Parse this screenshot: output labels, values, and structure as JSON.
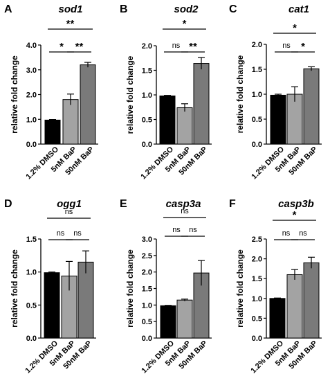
{
  "chart_data": [
    {
      "type": "bar",
      "panel_letter": "A",
      "title": "sod1",
      "ylabel": "relative fold change",
      "categories": [
        "1.2% DMSO",
        "5nM BaP",
        "50nM BaP"
      ],
      "values": [
        0.97,
        1.8,
        3.2
      ],
      "errors": [
        0.02,
        0.22,
        0.1
      ],
      "bar_colors": [
        "#000000",
        "#a3a3a3",
        "#7a7a7a"
      ],
      "ylim": [
        0,
        4.0
      ],
      "yticks": [
        "0.0",
        "1.0",
        "2.0",
        "3.0",
        "4.0"
      ],
      "significance": [
        {
          "from": 1,
          "to": 2,
          "label": "*"
        },
        {
          "from": 2,
          "to": 3,
          "label": "**"
        },
        {
          "from": 1,
          "to": 3,
          "label": "**"
        }
      ]
    },
    {
      "type": "bar",
      "panel_letter": "B",
      "title": "sod2",
      "ylabel": "relative fold change",
      "categories": [
        "1.2% DMSO",
        "5nM BaP",
        "50nM BaP"
      ],
      "values": [
        0.98,
        0.74,
        1.64
      ],
      "errors": [
        0.01,
        0.08,
        0.12
      ],
      "bar_colors": [
        "#000000",
        "#a3a3a3",
        "#7a7a7a"
      ],
      "ylim": [
        0,
        2.0
      ],
      "yticks": [
        "0.0",
        "0.5",
        "1.0",
        "1.5",
        "2.0"
      ],
      "significance": [
        {
          "from": 1,
          "to": 2,
          "label": "ns"
        },
        {
          "from": 2,
          "to": 3,
          "label": "**"
        },
        {
          "from": 1,
          "to": 3,
          "label": "*"
        }
      ]
    },
    {
      "type": "bar",
      "panel_letter": "C",
      "title": "cat1",
      "ylabel": "relative fold change",
      "categories": [
        "1.2% DMSO",
        "5nM BaP",
        "50nM BaP"
      ],
      "values": [
        0.98,
        1.0,
        1.51
      ],
      "errors": [
        0.02,
        0.15,
        0.04
      ],
      "bar_colors": [
        "#000000",
        "#a3a3a3",
        "#7a7a7a"
      ],
      "ylim": [
        0,
        2.0
      ],
      "yticks": [
        "0.0",
        "0.5",
        "1.0",
        "1.5",
        "2.0"
      ],
      "significance": [
        {
          "from": 1,
          "to": 2,
          "label": "ns"
        },
        {
          "from": 2,
          "to": 3,
          "label": "*"
        },
        {
          "from": 1,
          "to": 3,
          "label": "*"
        }
      ]
    },
    {
      "type": "bar",
      "panel_letter": "D",
      "title": "ogg1",
      "ylabel": "relative fold change",
      "categories": [
        "1.2% DMSO",
        "5nM BaP",
        "50nM BaP"
      ],
      "values": [
        0.99,
        0.94,
        1.15
      ],
      "errors": [
        0.01,
        0.22,
        0.17
      ],
      "bar_colors": [
        "#000000",
        "#a3a3a3",
        "#7a7a7a"
      ],
      "ylim": [
        0,
        1.5
      ],
      "yticks": [
        "0.0",
        "0.5",
        "1.0",
        "1.5"
      ],
      "significance": [
        {
          "from": 1,
          "to": 2,
          "label": "ns"
        },
        {
          "from": 2,
          "to": 3,
          "label": "ns"
        },
        {
          "from": 1,
          "to": 3,
          "label": "ns"
        }
      ]
    },
    {
      "type": "bar",
      "panel_letter": "E",
      "title": "casp3a",
      "ylabel": "relative fold change",
      "categories": [
        "1.2% DMSO",
        "5nM BaP",
        "50nM BaP"
      ],
      "values": [
        0.98,
        1.15,
        1.97
      ],
      "errors": [
        0.01,
        0.03,
        0.38
      ],
      "bar_colors": [
        "#000000",
        "#a3a3a3",
        "#7a7a7a"
      ],
      "ylim": [
        0,
        3.0
      ],
      "yticks": [
        "0.0",
        "0.5",
        "1.0",
        "1.5",
        "2.0",
        "2.5",
        "3.0"
      ],
      "significance": [
        {
          "from": 1,
          "to": 2,
          "label": "ns"
        },
        {
          "from": 2,
          "to": 3,
          "label": "ns"
        },
        {
          "from": 1,
          "to": 3,
          "label": "ns"
        }
      ]
    },
    {
      "type": "bar",
      "panel_letter": "F",
      "title": "casp3b",
      "ylabel": "relative fold change",
      "categories": [
        "1.2% DMSO",
        "5nM BaP",
        "50nM BaP"
      ],
      "values": [
        1.0,
        1.6,
        1.9
      ],
      "errors": [
        0.01,
        0.13,
        0.14
      ],
      "bar_colors": [
        "#000000",
        "#a3a3a3",
        "#7a7a7a"
      ],
      "ylim": [
        0,
        2.5
      ],
      "yticks": [
        "0.0",
        "0.5",
        "1.0",
        "1.5",
        "2.0",
        "2.5"
      ],
      "significance": [
        {
          "from": 1,
          "to": 2,
          "label": "ns"
        },
        {
          "from": 2,
          "to": 3,
          "label": "ns"
        },
        {
          "from": 1,
          "to": 3,
          "label": "*"
        }
      ]
    }
  ]
}
